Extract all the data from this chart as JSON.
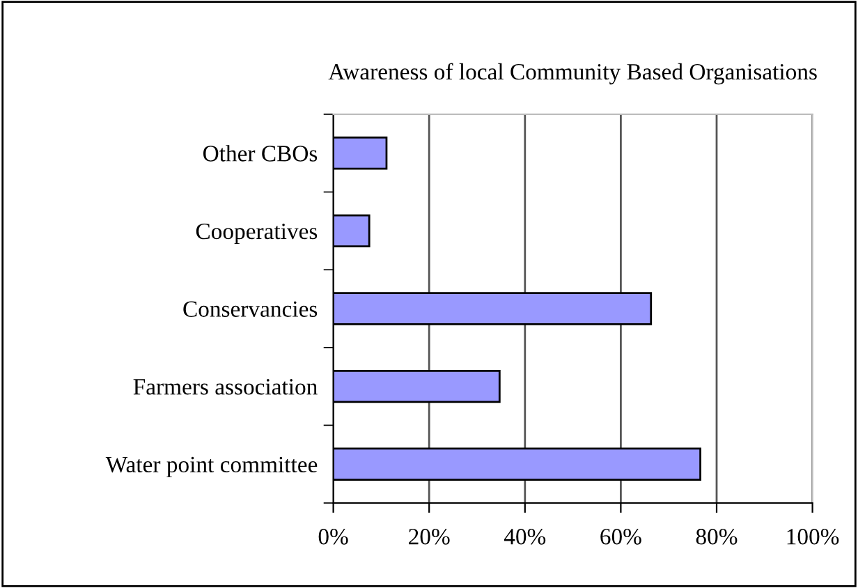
{
  "chart_data": {
    "type": "bar",
    "orientation": "horizontal",
    "title": "Awareness of local Community Based Organisations",
    "categories": [
      "Other CBOs",
      "Cooperatives",
      "Conservancies",
      "Farmers association",
      "Water point committee"
    ],
    "values": [
      11.1,
      7.5,
      66.3,
      34.7,
      76.6
    ],
    "color": "#9999ff",
    "xlim": [
      0,
      100
    ],
    "xticks": [
      {
        "value": 0,
        "label": "0%"
      },
      {
        "value": 20,
        "label": "20%"
      },
      {
        "value": 40,
        "label": "40%"
      },
      {
        "value": 60,
        "label": "60%"
      },
      {
        "value": 80,
        "label": "80%"
      },
      {
        "value": 100,
        "label": "100%"
      }
    ],
    "grid": "x",
    "legend": false
  }
}
